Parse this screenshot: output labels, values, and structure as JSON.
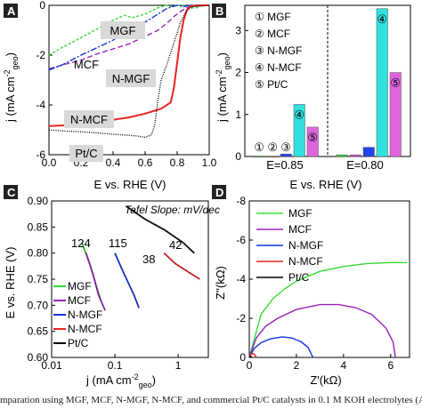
{
  "caption": "mparation using MGF, MCF, N-MGF, N-MCF, and commercial Pt/C catalysts in 0.1 M KOH electrolytes (A) LSV plots (B)",
  "colors": {
    "MGF": "#33dd33",
    "MCF": "#9922bb",
    "N-MGF": "#1133dd",
    "N-MCF": "#ee2222",
    "Pt/C": "#000000"
  },
  "chart_data": [
    {
      "panel": "A",
      "type": "line",
      "xlabel": "E vs. RHE (V)",
      "ylabel": "j (mA cm⁻² geo)",
      "ylabel_main": "j (mA cm",
      "ylabel_exp": "-2",
      "ylabel_close": ")",
      "ylabel_sub": "geo",
      "xlim": [
        0.0,
        1.0
      ],
      "ylim": [
        -6,
        0
      ],
      "xticks": [
        "0.0",
        "0.2",
        "0.4",
        "0.6",
        "0.8",
        "1.0"
      ],
      "yticks": [
        "-6",
        "-4",
        "-2",
        "0"
      ],
      "labels": [
        "MGF",
        "MCF",
        "N-MGF",
        "N-MCF",
        "Pt/C"
      ],
      "series": [
        {
          "name": "MGF",
          "x": [
            0.0,
            0.08,
            0.2,
            0.3,
            0.4,
            0.47,
            0.52,
            0.6,
            0.68,
            0.73,
            0.76,
            0.79,
            0.81,
            0.84,
            0.88,
            0.92,
            0.96,
            1.0
          ],
          "y": [
            -2.0,
            -1.7,
            -1.3,
            -0.95,
            -0.6,
            -0.4,
            -0.5,
            -0.35,
            -0.1,
            -0.0,
            -0.05,
            -0.02,
            0.0,
            0.0,
            -0.1,
            -0.1,
            0.0,
            0.0
          ]
        },
        {
          "name": "MCF",
          "x": [
            0.0,
            0.08,
            0.2,
            0.3,
            0.4,
            0.5,
            0.6,
            0.68,
            0.74,
            0.78,
            0.82,
            0.86,
            0.9,
            0.95,
            1.0
          ],
          "y": [
            -2.55,
            -2.4,
            -2.2,
            -1.95,
            -1.75,
            -1.55,
            -1.25,
            -1.0,
            -0.7,
            -0.45,
            -0.25,
            -0.1,
            -0.05,
            0.0,
            0.0
          ]
        },
        {
          "name": "N-MGF",
          "x": [
            0.0,
            0.08,
            0.2,
            0.3,
            0.4,
            0.48,
            0.55,
            0.62,
            0.68,
            0.73,
            0.77,
            0.8,
            0.84,
            0.88,
            0.92,
            0.96,
            1.0
          ],
          "y": [
            -2.6,
            -2.4,
            -2.0,
            -1.7,
            -1.4,
            -1.05,
            -0.85,
            -0.6,
            -0.35,
            -0.15,
            -0.05,
            0.0,
            -0.05,
            0.0,
            0.0,
            0.0,
            0.0
          ]
        },
        {
          "name": "N-MCF",
          "x": [
            0.0,
            0.1,
            0.2,
            0.3,
            0.4,
            0.5,
            0.6,
            0.7,
            0.76,
            0.78,
            0.8,
            0.82,
            0.84,
            0.86,
            0.88,
            0.92,
            1.0
          ],
          "y": [
            -4.85,
            -4.82,
            -4.78,
            -4.72,
            -4.6,
            -4.5,
            -4.35,
            -4.15,
            -3.9,
            -3.3,
            -2.3,
            -1.3,
            -0.6,
            -0.2,
            -0.05,
            0.0,
            0.0
          ]
        },
        {
          "name": "Pt/C",
          "x": [
            0.0,
            0.1,
            0.2,
            0.3,
            0.4,
            0.5,
            0.55,
            0.6,
            0.64,
            0.66,
            0.68,
            0.7,
            0.74,
            0.78,
            0.82,
            0.86,
            0.9,
            1.0
          ],
          "y": [
            -5.0,
            -5.05,
            -5.08,
            -5.12,
            -5.18,
            -5.22,
            -5.25,
            -5.3,
            -5.2,
            -4.8,
            -3.8,
            -3.0,
            -2.3,
            -1.5,
            -0.7,
            -0.2,
            -0.05,
            0.0
          ]
        }
      ]
    },
    {
      "panel": "B",
      "type": "bar",
      "xlabel": "E vs. RHE (V)",
      "ylabel": "j (mA cm⁻² geo)",
      "ylabel_main": "j (mA cm",
      "ylabel_exp": "-2",
      "ylabel_close": ")",
      "ylabel_sub": "geo",
      "ylim": [
        0,
        3.6
      ],
      "yticks": [
        "0",
        "1",
        "2",
        "3"
      ],
      "group_labels": [
        "E=0.85",
        "E=0.80"
      ],
      "legend": [
        "① MGF",
        "② MCF",
        "③ N-MGF",
        "④ N-MCF",
        "⑤ Pt/C"
      ],
      "marker_labels": [
        "①",
        "②",
        "③",
        "④",
        "⑤"
      ],
      "categories": [
        "MGF",
        "MCF",
        "N-MGF",
        "N-MCF",
        "Pt/C"
      ],
      "series": [
        {
          "group": "E=0.85",
          "values": [
            0.0,
            0.0,
            0.06,
            1.24,
            0.7
          ]
        },
        {
          "group": "E=0.80",
          "values": [
            0.04,
            0.04,
            0.22,
            3.52,
            2.0
          ]
        }
      ]
    },
    {
      "panel": "C",
      "type": "line",
      "xlabel": "j (mA cm⁻² geo)",
      "xlabel_main": "j (mA cm",
      "xlabel_exp": "-2",
      "xlabel_sub": "geo",
      "xlabel_close": ")",
      "ylabel": "E vs. RHE (V)",
      "xscale": "log",
      "xlim": [
        0.01,
        3
      ],
      "ylim": [
        0.6,
        0.9
      ],
      "xticks": [
        "0.01",
        "0.1",
        "1"
      ],
      "yticks": [
        "0.60",
        "0.65",
        "0.70",
        "0.75",
        "0.80",
        "0.85",
        "0.90"
      ],
      "annotation": "Tafel Slope: mV/dec",
      "slope_labels": [
        "124",
        "115",
        "38",
        "42"
      ],
      "legend": [
        "MGF",
        "MCF",
        "N-MGF",
        "N-MCF",
        "Pt/C"
      ],
      "series": [
        {
          "name": "MGF",
          "x": [
            0.03,
            0.04,
            0.05,
            0.06
          ],
          "y": [
            0.82,
            0.78,
            0.74,
            0.71
          ]
        },
        {
          "name": "MCF",
          "x": [
            0.035,
            0.045,
            0.055,
            0.07
          ],
          "y": [
            0.8,
            0.76,
            0.72,
            0.69
          ]
        },
        {
          "name": "N-MGF",
          "x": [
            0.1,
            0.14,
            0.2,
            0.24
          ],
          "y": [
            0.8,
            0.76,
            0.72,
            0.695
          ]
        },
        {
          "name": "N-MCF",
          "x": [
            0.6,
            0.9,
            1.4,
            2.2
          ],
          "y": [
            0.8,
            0.78,
            0.765,
            0.75
          ]
        },
        {
          "name": "Pt/C",
          "x": [
            0.15,
            0.3,
            0.6,
            1.2,
            1.8
          ],
          "y": [
            0.89,
            0.865,
            0.845,
            0.82,
            0.8
          ]
        }
      ]
    },
    {
      "panel": "D",
      "type": "line",
      "xlabel": "Z'(kΩ)",
      "ylabel": "Z''(kΩ)",
      "xlim": [
        0,
        6.8
      ],
      "ylim": [
        0,
        -8
      ],
      "xticks": [
        "0",
        "2",
        "4",
        "6"
      ],
      "yticks": [
        "-8",
        "-6",
        "-4",
        "-2",
        "0"
      ],
      "legend": [
        "MGF",
        "MCF",
        "N-MGF",
        "N-MCF",
        "Pt/C"
      ],
      "series": [
        {
          "name": "MGF",
          "x": [
            0.0,
            0.5,
            1.0,
            1.5,
            2.0,
            3.0,
            4.0,
            5.0,
            6.0,
            6.7
          ],
          "y": [
            0.0,
            -2.2,
            -3.0,
            -3.5,
            -3.9,
            -4.4,
            -4.65,
            -4.8,
            -4.85,
            -4.85
          ]
        },
        {
          "name": "MCF",
          "x": [
            0.0,
            0.3,
            0.7,
            1.2,
            2.0,
            3.0,
            3.8,
            4.5,
            5.2,
            5.8,
            6.1,
            6.2
          ],
          "y": [
            0.0,
            -1.0,
            -1.6,
            -2.0,
            -2.45,
            -2.7,
            -2.7,
            -2.55,
            -2.2,
            -1.5,
            -0.8,
            0.0
          ]
        },
        {
          "name": "N-MGF",
          "x": [
            0.0,
            0.2,
            0.5,
            0.9,
            1.4,
            1.8,
            2.2,
            2.5,
            2.7
          ],
          "y": [
            0.0,
            -0.45,
            -0.75,
            -0.95,
            -1.05,
            -1.0,
            -0.8,
            -0.5,
            0.0
          ]
        },
        {
          "name": "N-MCF",
          "x": [
            0.0,
            0.05,
            0.1,
            0.15,
            0.2,
            0.25,
            0.3
          ],
          "y": [
            0.0,
            -0.12,
            -0.18,
            -0.2,
            -0.18,
            -0.12,
            0.0
          ]
        },
        {
          "name": "Pt/C",
          "x": [
            0.0,
            0.03,
            0.06,
            0.1
          ],
          "y": [
            0.0,
            -0.04,
            -0.05,
            0.0
          ]
        }
      ]
    }
  ]
}
